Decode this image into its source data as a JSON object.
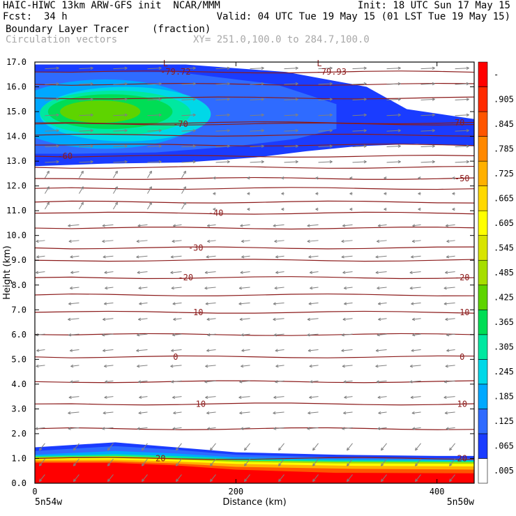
{
  "header": {
    "line1_left": "HAIC-HIWC 13km ARW-GFS init  NCAR/MMM",
    "line1_right": "Init: 18 UTC Sun 17 May 15",
    "line2_left": "Fcst:  34 h",
    "line2_right": "Valid: 04 UTC Tue 19 May 15 (01 LST Tue 19 May 15)",
    "line3_field": "Boundary Layer Tracer",
    "line3_units": "(fraction)",
    "line4_field": "Circulation vectors",
    "line4_xy": "XY= 251.0,100.0 to 284.7,100.0"
  },
  "chart_data": {
    "type": "heatmap",
    "title": "Boundary Layer Tracer",
    "units": "(fraction)",
    "xlabel": "Distance (km)",
    "ylabel": "Height (km)",
    "xlim": [
      0,
      437
    ],
    "ylim": [
      0.0,
      17.0
    ],
    "x_ticks": [
      0,
      200,
      400
    ],
    "y_ticks": [
      "0.0",
      "1.0",
      "2.0",
      "3.0",
      "4.0",
      "5.0",
      "6.0",
      "7.0",
      "8.0",
      "9.0",
      "10.0",
      "11.0",
      "12.0",
      "13.0",
      "14.0",
      "15.0",
      "16.0",
      "17.0"
    ],
    "x_endpoint_labels": [
      "5n54w",
      "5n50w"
    ],
    "colorbar": {
      "labels": [
        ".005",
        ".065",
        ".125",
        ".185",
        ".245",
        ".305",
        ".365",
        ".425",
        ".485",
        ".545",
        ".605",
        ".665",
        ".725",
        ".785",
        ".845",
        ".905",
        "-"
      ],
      "colors": [
        "#ffffff",
        "#1a3cff",
        "#2f6bff",
        "#00a8ff",
        "#00d8e8",
        "#00e8a0",
        "#00dd55",
        "#5ed400",
        "#a6de00",
        "#d8e400",
        "#ffff00",
        "#ffd800",
        "#ffb000",
        "#ff8800",
        "#ff5500",
        "#ff2a00",
        "#ff0000"
      ]
    },
    "temperature_contours": {
      "color": "#8b1a1a",
      "labeled": [
        {
          "label": "-79.72",
          "height_km": 16.6,
          "x_km": 140
        },
        {
          "label": "-79.93",
          "height_km": 16.6,
          "x_km": 295
        },
        {
          "label": "-70",
          "height_km": 14.5,
          "x_km": 145
        },
        {
          "label": "-70",
          "height_km": 14.55,
          "x_km": 420
        },
        {
          "label": "-60",
          "height_km": 13.2,
          "x_km": 30
        },
        {
          "label": "-50",
          "height_km": 12.3,
          "x_km": 425
        },
        {
          "label": "-40",
          "height_km": 10.9,
          "x_km": 180
        },
        {
          "label": "-30",
          "height_km": 9.5,
          "x_km": 160
        },
        {
          "label": "-20",
          "height_km": 8.3,
          "x_km": 150
        },
        {
          "label": "-20",
          "height_km": 8.3,
          "x_km": 425
        },
        {
          "label": "-10",
          "height_km": 6.9,
          "x_km": 160
        },
        {
          "label": "-10",
          "height_km": 6.9,
          "x_km": 425
        },
        {
          "label": "0",
          "height_km": 5.1,
          "x_km": 140
        },
        {
          "label": "0",
          "height_km": 5.1,
          "x_km": 425
        },
        {
          "label": "10",
          "height_km": 3.2,
          "x_km": 165
        },
        {
          "label": "10",
          "height_km": 3.2,
          "x_km": 425
        },
        {
          "label": "20",
          "height_km": 1.0,
          "x_km": 125
        },
        {
          "label": "20",
          "height_km": 1.0,
          "x_km": 425
        }
      ],
      "low_markers": [
        {
          "label": "L",
          "height_km": 16.95,
          "x_km": 130
        },
        {
          "label": "L",
          "height_km": 16.95,
          "x_km": 283
        }
      ],
      "unlabeled_heights_km": [
        16.1,
        15.55,
        14.05,
        13.65,
        12.75,
        11.9,
        11.35,
        10.3,
        9.0,
        7.6,
        6.0,
        4.1,
        2.2
      ]
    },
    "tracer_regions": [
      {
        "name": "upper tropospheric plume",
        "height_range_km": [
          12.9,
          16.9
        ],
        "x_range_km": [
          0,
          437
        ],
        "max_fraction": 0.4
      },
      {
        "name": "boundary layer",
        "height_range_km": [
          0.0,
          1.5
        ],
        "x_range_km": [
          0,
          437
        ],
        "max_fraction": 1.0
      }
    ],
    "circulation_vectors": {
      "color": "#808080",
      "upper_level_flow": "eastward, 12.5-17 km",
      "mid_level_flow": "westward, 2-12 km",
      "boundary_layer_flow": "southward/downward near 0-1.5 km"
    }
  }
}
